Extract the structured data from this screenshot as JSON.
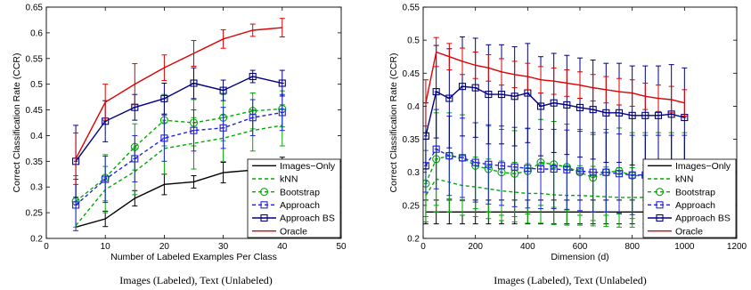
{
  "captions": {
    "left": "Images (Labeled), Text (Unlabeled)",
    "right": "Images (Labeled), Text (Unlabeled)"
  },
  "chart_data": [
    {
      "type": "line",
      "xlabel": "Number of Labeled Examples Per Class",
      "ylabel": "Correct Classification Rate (CCR)",
      "xlim": [
        0,
        50
      ],
      "ylim": [
        0.2,
        0.65
      ],
      "xticks": [
        0,
        10,
        20,
        30,
        40,
        50
      ],
      "yticks": [
        0.2,
        0.25,
        0.3,
        0.35,
        0.4,
        0.45,
        0.5,
        0.55,
        0.6,
        0.65
      ],
      "legend_position": "bottom-right",
      "x": [
        5,
        10,
        15,
        20,
        25,
        30,
        35,
        40
      ],
      "series": [
        {
          "name": "Images−Only",
          "color": "#000000",
          "dash": "solid",
          "marker": "none",
          "values": [
            0.222,
            0.238,
            0.278,
            0.305,
            0.31,
            0.328,
            0.333,
            0.338
          ],
          "errors": [
            0,
            0.015,
            0.015,
            0.02,
            0.012,
            0.02,
            0.015,
            0.02
          ]
        },
        {
          "name": "kNN",
          "color": "#00aa00",
          "dash": "dashed",
          "marker": "none",
          "values": [
            0.225,
            0.295,
            0.33,
            0.375,
            0.385,
            0.395,
            0.41,
            0.42
          ],
          "errors": [
            0,
            0.045,
            0.045,
            0.05,
            0.05,
            0.045,
            0.04,
            0.04
          ]
        },
        {
          "name": "Bootstrap",
          "color": "#00aa00",
          "dash": "dashed",
          "marker": "circle",
          "values": [
            0.272,
            0.318,
            0.378,
            0.43,
            0.425,
            0.435,
            0.448,
            0.452
          ],
          "errors": [
            0.05,
            0.045,
            0.045,
            0.05,
            0.045,
            0.045,
            0.035,
            0.035
          ]
        },
        {
          "name": "Approach",
          "color": "#2222dd",
          "dash": "dashed",
          "marker": "square",
          "values": [
            0.265,
            0.315,
            0.355,
            0.395,
            0.41,
            0.415,
            0.435,
            0.445
          ],
          "errors": [
            0.05,
            0.045,
            0.045,
            0.045,
            0.04,
            0.04,
            0.035,
            0.035
          ]
        },
        {
          "name": "Approach BS",
          "color": "#000080",
          "dash": "solid",
          "marker": "square",
          "values": [
            0.35,
            0.428,
            0.455,
            0.472,
            0.502,
            0.488,
            0.515,
            0.502
          ],
          "errors": [
            0.07,
            0.04,
            0.025,
            0.03,
            0.03,
            0.02,
            0.012,
            0.025
          ]
        },
        {
          "name": "Oracle",
          "color": "#dd0000",
          "dash": "solid",
          "marker": "none",
          "values": [
            0.355,
            0.465,
            0.5,
            0.532,
            0.56,
            0.588,
            0.605,
            0.61
          ],
          "errors": [
            0.05,
            0.035,
            0.04,
            0.025,
            0.025,
            0.018,
            0.012,
            0.018
          ]
        }
      ]
    },
    {
      "type": "line",
      "xlabel": "Dimension (d)",
      "ylabel": "Correct Classification Rate (CCR)",
      "xlim": [
        0,
        1200
      ],
      "ylim": [
        0.2,
        0.55
      ],
      "xticks": [
        0,
        200,
        400,
        600,
        800,
        1000,
        1200
      ],
      "yticks": [
        0.2,
        0.25,
        0.3,
        0.35,
        0.4,
        0.45,
        0.5,
        0.55
      ],
      "legend_position": "bottom-right",
      "x": [
        10,
        50,
        100,
        150,
        200,
        250,
        300,
        350,
        400,
        450,
        500,
        550,
        600,
        650,
        700,
        750,
        800,
        850,
        900,
        950,
        1000
      ],
      "series": [
        {
          "name": "Images−Only",
          "color": "#000000",
          "dash": "solid",
          "marker": "none",
          "values": [
            0.24,
            0.24,
            0.24,
            0.24,
            0.24,
            0.24,
            0.24,
            0.24,
            0.24,
            0.24,
            0.24,
            0.24,
            0.24,
            0.24,
            0.24,
            0.24,
            0.24,
            0.24,
            0.24,
            0.24,
            0.24
          ],
          "errors": [
            0.018,
            0.018,
            0.018,
            0.018,
            0.018,
            0.018,
            0.018,
            0.018,
            0.018,
            0.018,
            0.018,
            0.018,
            0.018,
            0.018,
            0.018,
            0.018,
            0.018,
            0.018,
            0.018,
            0.018,
            0.018
          ]
        },
        {
          "name": "kNN",
          "color": "#00aa00",
          "dash": "dashed",
          "marker": "none",
          "values": [
            0.265,
            0.29,
            0.285,
            0.28,
            0.278,
            0.275,
            0.272,
            0.27,
            0.268,
            0.268,
            0.266,
            0.265,
            0.265,
            0.264,
            0.263,
            0.262,
            0.262,
            0.262,
            0.262,
            0.262,
            0.262
          ],
          "errors": [
            0.04,
            0.05,
            0.045,
            0.045,
            0.045,
            0.045,
            0.045,
            0.045,
            0.045,
            0.045,
            0.045,
            0.045,
            0.045,
            0.045,
            0.045,
            0.045,
            0.045,
            0.045,
            0.045,
            0.045,
            0.045
          ]
        },
        {
          "name": "Bootstrap",
          "color": "#00aa00",
          "dash": "dashed",
          "marker": "circle",
          "values": [
            0.283,
            0.32,
            0.325,
            0.322,
            0.31,
            0.305,
            0.3,
            0.298,
            0.302,
            0.315,
            0.312,
            0.308,
            0.3,
            0.292,
            0.3,
            0.302,
            0.295,
            0.295,
            0.295,
            0.295,
            0.295
          ],
          "errors": [
            0.05,
            0.07,
            0.065,
            0.065,
            0.065,
            0.065,
            0.065,
            0.065,
            0.065,
            0.065,
            0.065,
            0.065,
            0.065,
            0.065,
            0.065,
            0.065,
            0.065,
            0.065,
            0.065,
            0.065,
            0.065
          ]
        },
        {
          "name": "Approach",
          "color": "#2222dd",
          "dash": "dashed",
          "marker": "square",
          "values": [
            0.31,
            0.335,
            0.325,
            0.322,
            0.315,
            0.312,
            0.31,
            0.308,
            0.306,
            0.305,
            0.305,
            0.304,
            0.302,
            0.3,
            0.3,
            0.298,
            0.296,
            0.296,
            0.296,
            0.296,
            0.296
          ],
          "errors": [
            0.04,
            0.06,
            0.06,
            0.06,
            0.06,
            0.06,
            0.06,
            0.06,
            0.06,
            0.06,
            0.06,
            0.06,
            0.06,
            0.06,
            0.06,
            0.06,
            0.06,
            0.06,
            0.06,
            0.06,
            0.06
          ]
        },
        {
          "name": "Approach BS",
          "color": "#000080",
          "dash": "solid",
          "marker": "square",
          "values": [
            0.355,
            0.422,
            0.412,
            0.43,
            0.428,
            0.418,
            0.418,
            0.415,
            0.42,
            0.4,
            0.405,
            0.402,
            0.398,
            0.395,
            0.39,
            0.39,
            0.386,
            0.386,
            0.386,
            0.388,
            0.383
          ],
          "errors": [
            0.05,
            0.07,
            0.075,
            0.075,
            0.075,
            0.075,
            0.075,
            0.075,
            0.075,
            0.075,
            0.075,
            0.075,
            0.075,
            0.075,
            0.075,
            0.075,
            0.075,
            0.075,
            0.075,
            0.075,
            0.075
          ]
        },
        {
          "name": "Oracle",
          "color": "#dd0000",
          "dash": "solid",
          "marker": "none",
          "values": [
            0.405,
            0.482,
            0.475,
            0.468,
            0.462,
            0.458,
            0.452,
            0.448,
            0.445,
            0.44,
            0.438,
            0.435,
            0.432,
            0.428,
            0.425,
            0.422,
            0.42,
            0.415,
            0.412,
            0.41,
            0.405
          ],
          "errors": [
            0.035,
            0.022,
            0.02,
            0.02,
            0.02,
            0.02,
            0.02,
            0.02,
            0.02,
            0.02,
            0.02,
            0.02,
            0.02,
            0.02,
            0.02,
            0.02,
            0.02,
            0.02,
            0.02,
            0.02,
            0.02
          ]
        }
      ]
    }
  ]
}
